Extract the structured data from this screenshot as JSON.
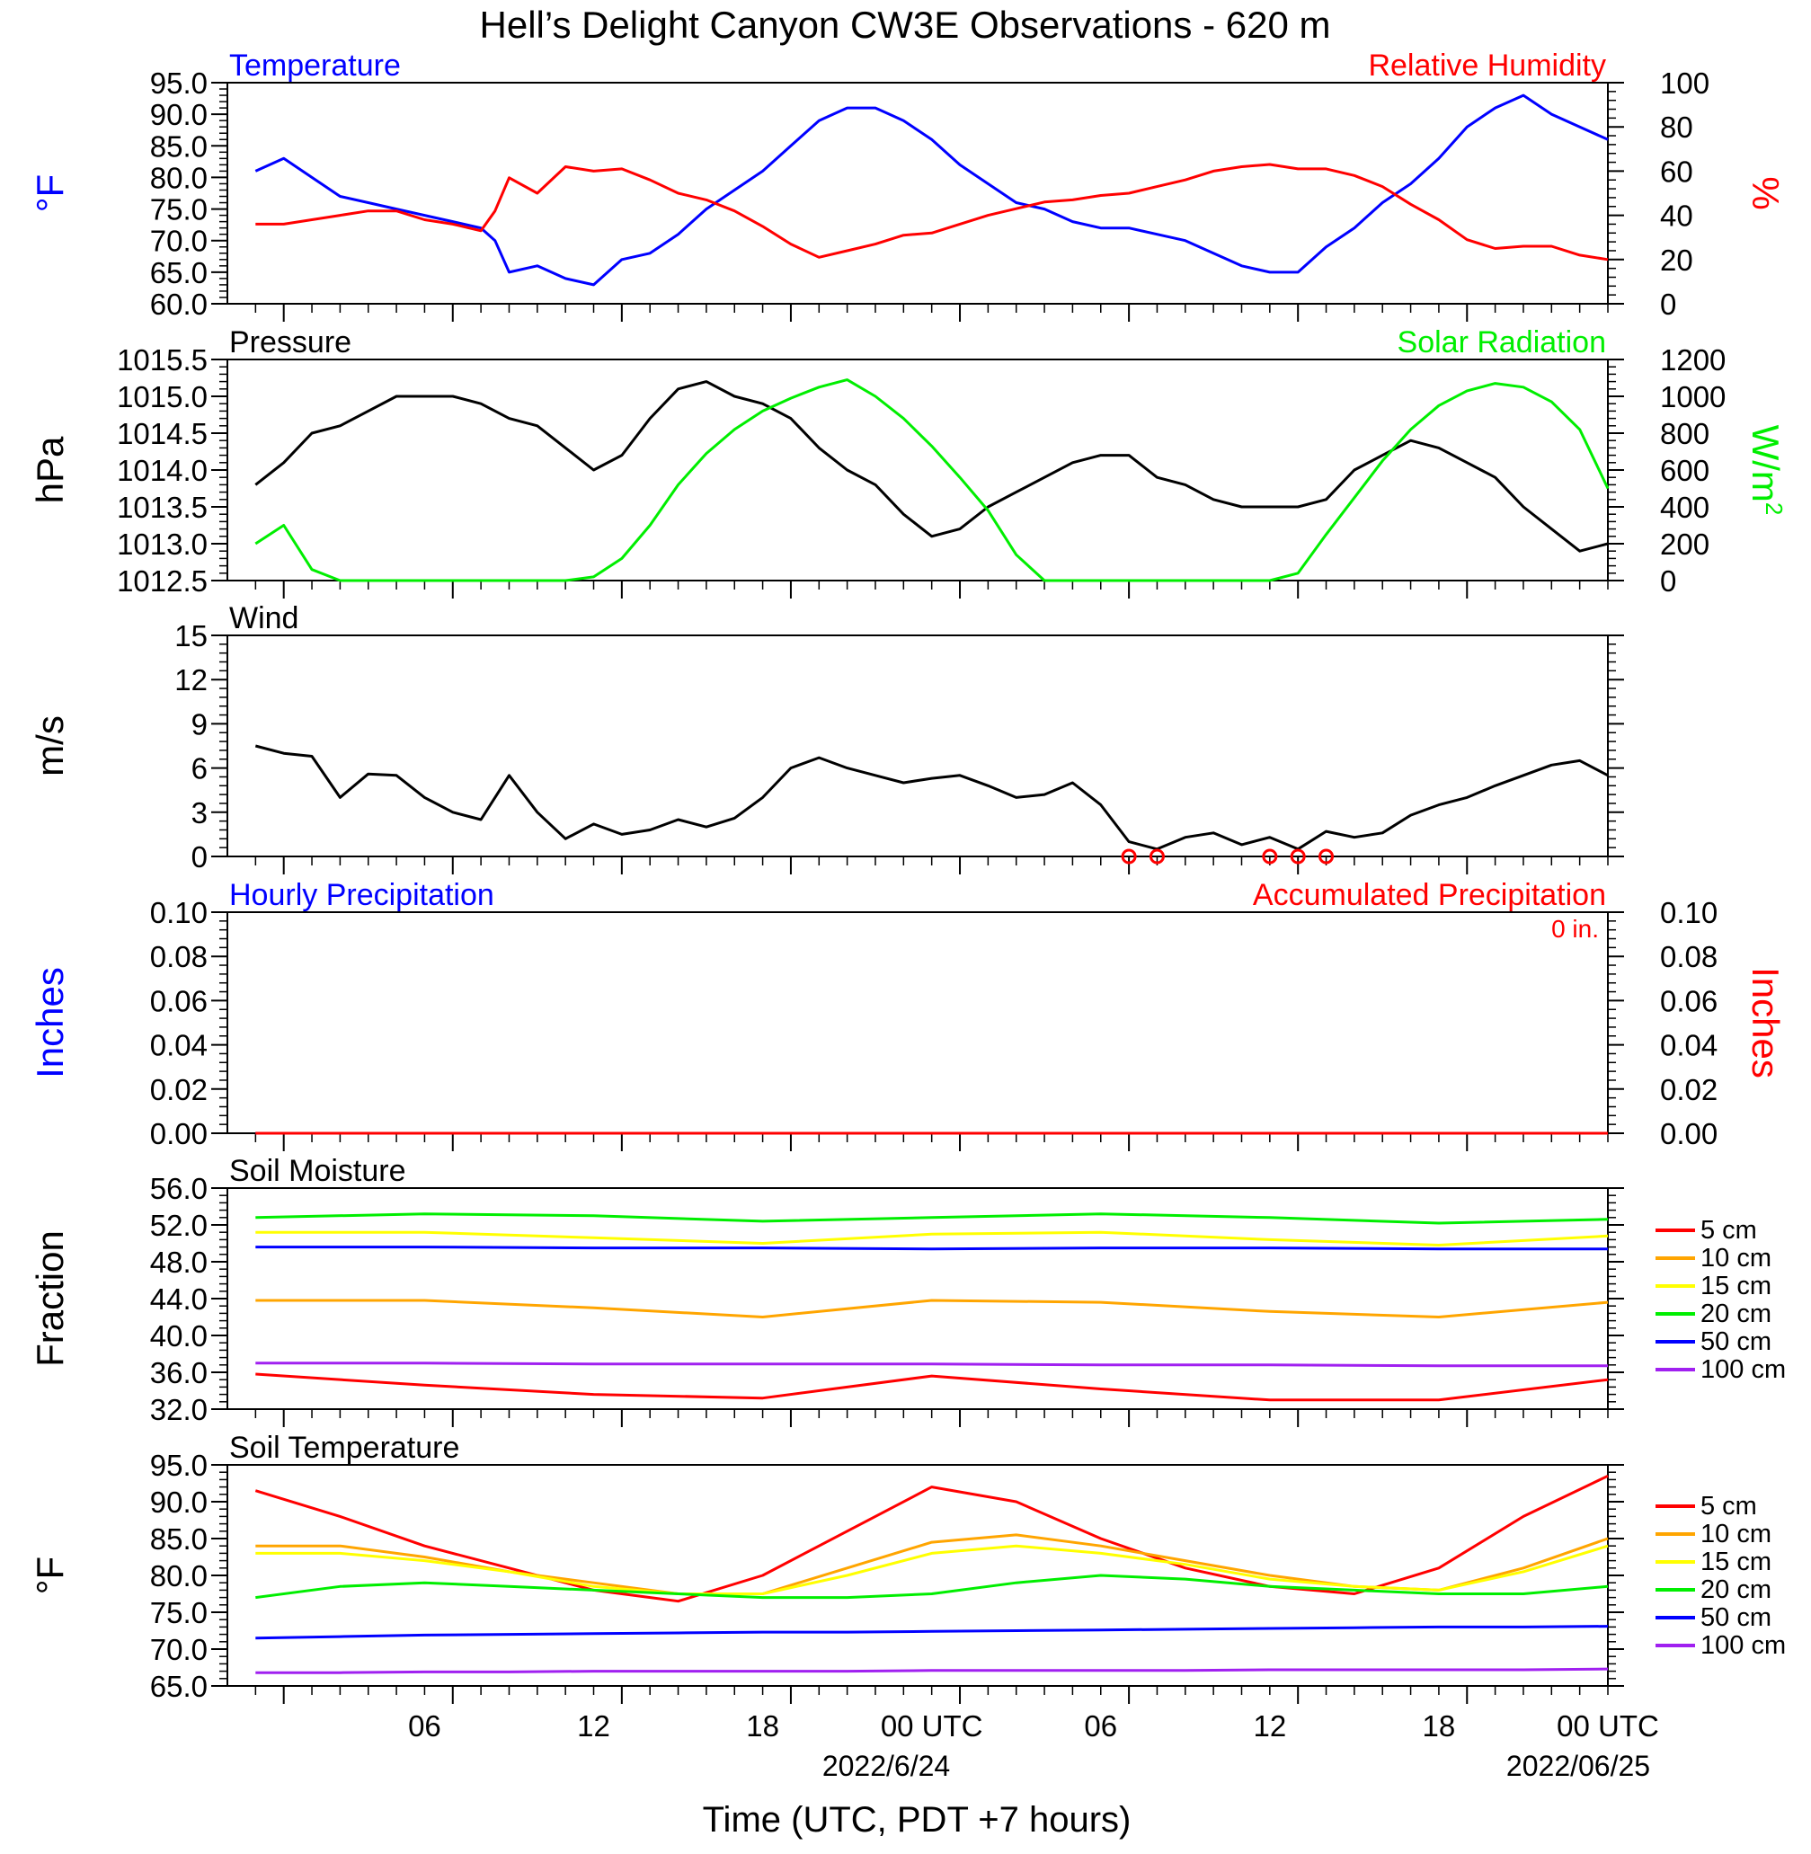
{
  "title": "Hell’s Delight Canyon CW3E Observations - 620 m",
  "xlabel": "Time (UTC, PDT +7 hours)",
  "x_ticks": [
    "06",
    "12",
    "18",
    "00 UTC",
    "06",
    "12",
    "18",
    "00 UTC"
  ],
  "x_dates": [
    "2022/6/24",
    "2022/06/25"
  ],
  "chart_data": [
    {
      "type": "line",
      "panel": "temperature-humidity",
      "left_title": "Temperature",
      "right_title": "Relative Humidity",
      "ylabel_left": "°F",
      "ylabel_right": "%",
      "ylim_left": [
        60,
        95
      ],
      "ylim_right": [
        0,
        100
      ],
      "yticks_left": [
        "95.0",
        "90.0",
        "85.0",
        "80.0",
        "75.0",
        "70.0",
        "65.0",
        "60.0"
      ],
      "yticks_right": [
        "100",
        "80",
        "60",
        "40",
        "20",
        "0"
      ],
      "x_hours": [
        1,
        2,
        3,
        4,
        5,
        6,
        7,
        8,
        9,
        9.5,
        10,
        11,
        12,
        13,
        14,
        15,
        16,
        17,
        18,
        19,
        20,
        21,
        22,
        23,
        24,
        25,
        26,
        27,
        28,
        29,
        30,
        31,
        32,
        33,
        34,
        35,
        36,
        37,
        38,
        39,
        40,
        41,
        42,
        43,
        44,
        45,
        46,
        47,
        48,
        49
      ],
      "series": [
        {
          "name": "Temperature",
          "axis": "left",
          "color": "#0000ff",
          "values": [
            81,
            83,
            80,
            77,
            76,
            75,
            74,
            73,
            72,
            70,
            65,
            66,
            64,
            63,
            67,
            68,
            71,
            75,
            78,
            81,
            85,
            89,
            91,
            91,
            89,
            86,
            82,
            79,
            76,
            75,
            73,
            72,
            72,
            71,
            70,
            68,
            66,
            65,
            65,
            69,
            72,
            76,
            79,
            83,
            88,
            91,
            93,
            90,
            88,
            86
          ]
        },
        {
          "name": "Relative Humidity",
          "axis": "right",
          "color": "#ff0000",
          "values": [
            36,
            36,
            38,
            40,
            42,
            42,
            38,
            36,
            33,
            42,
            57,
            50,
            62,
            60,
            61,
            56,
            50,
            47,
            42,
            35,
            27,
            21,
            24,
            27,
            31,
            32,
            36,
            40,
            43,
            46,
            47,
            49,
            50,
            53,
            56,
            60,
            62,
            63,
            61,
            61,
            58,
            53,
            45,
            38,
            29,
            25,
            26,
            26,
            22,
            20
          ]
        }
      ]
    },
    {
      "type": "line",
      "panel": "pressure-solar",
      "left_title": "Pressure",
      "right_title": "Solar Radiation",
      "ylabel_left": "hPa",
      "ylabel_right": "W/m",
      "ylabel_right_sup": "2",
      "ylim_left": [
        1012.5,
        1015.5
      ],
      "ylim_right": [
        0,
        1200
      ],
      "yticks_left": [
        "1015.5",
        "1015.0",
        "1014.5",
        "1014.0",
        "1013.5",
        "1013.0",
        "1012.5"
      ],
      "yticks_right": [
        "1200",
        "1000",
        "800",
        "600",
        "400",
        "200",
        "0"
      ],
      "x_hours": [
        1,
        2,
        3,
        4,
        5,
        6,
        7,
        8,
        9,
        10,
        11,
        12,
        13,
        14,
        15,
        16,
        17,
        18,
        19,
        20,
        21,
        22,
        23,
        24,
        25,
        26,
        27,
        28,
        29,
        30,
        31,
        32,
        33,
        34,
        35,
        36,
        37,
        38,
        39,
        40,
        41,
        42,
        43,
        44,
        45,
        46,
        47,
        48,
        49
      ],
      "series": [
        {
          "name": "Pressure",
          "axis": "left",
          "color": "#000000",
          "values": [
            1013.8,
            1014.1,
            1014.5,
            1014.6,
            1014.8,
            1015.0,
            1015.0,
            1015.0,
            1014.9,
            1014.7,
            1014.6,
            1014.3,
            1014.0,
            1014.2,
            1014.7,
            1015.1,
            1015.2,
            1015.0,
            1014.9,
            1014.7,
            1014.3,
            1014.0,
            1013.8,
            1013.4,
            1013.1,
            1013.2,
            1013.5,
            1013.7,
            1013.9,
            1014.1,
            1014.2,
            1014.2,
            1013.9,
            1013.8,
            1013.6,
            1013.5,
            1013.5,
            1013.5,
            1013.6,
            1014.0,
            1014.2,
            1014.4,
            1014.3,
            1014.1,
            1013.9,
            1013.5,
            1013.2,
            1012.9,
            1013.0
          ]
        },
        {
          "name": "Solar Radiation",
          "axis": "right",
          "color": "#00ee00",
          "values": [
            200,
            300,
            60,
            0,
            0,
            0,
            0,
            0,
            0,
            0,
            0,
            0,
            20,
            120,
            300,
            520,
            690,
            820,
            920,
            990,
            1050,
            1090,
            1000,
            880,
            730,
            560,
            380,
            140,
            0,
            0,
            0,
            0,
            0,
            0,
            0,
            0,
            0,
            40,
            250,
            450,
            650,
            820,
            950,
            1030,
            1070,
            1050,
            970,
            820,
            500
          ]
        }
      ]
    },
    {
      "type": "line",
      "panel": "wind",
      "left_title": "Wind",
      "ylabel_left": "m/s",
      "ylim_left": [
        0,
        15
      ],
      "yticks_left": [
        "15",
        "12",
        "9",
        "6",
        "3",
        "0"
      ],
      "x_hours": [
        1,
        2,
        3,
        4,
        5,
        6,
        7,
        8,
        9,
        10,
        11,
        12,
        13,
        14,
        15,
        16,
        17,
        18,
        19,
        20,
        21,
        22,
        23,
        24,
        25,
        26,
        27,
        28,
        29,
        30,
        31,
        32,
        33,
        34,
        35,
        36,
        37,
        38,
        39,
        40,
        41,
        42,
        43,
        44,
        45,
        46,
        47,
        48,
        49
      ],
      "series": [
        {
          "name": "Wind speed",
          "color": "#000000",
          "values": [
            7.5,
            7,
            6.8,
            4,
            5.6,
            5.5,
            4,
            3,
            2.5,
            5.5,
            3,
            1.2,
            2.2,
            1.5,
            1.8,
            2.5,
            2,
            2.6,
            4,
            6,
            6.7,
            6,
            5.5,
            5,
            5.3,
            5.5,
            4.8,
            4,
            4.2,
            5,
            3.5,
            1,
            0.5,
            1.3,
            1.6,
            0.8,
            1.3,
            0.5,
            1.7,
            1.3,
            1.6,
            2.8,
            3.5,
            4,
            4.8,
            5.5,
            6.2,
            6.5,
            5.5
          ]
        }
      ],
      "calm_markers_hours": [
        32,
        33,
        37,
        38,
        39
      ]
    },
    {
      "type": "line",
      "panel": "precipitation",
      "left_title": "Hourly Precipitation",
      "right_title": "Accumulated Precipitation",
      "annotation": "0 in.",
      "ylabel_left": "Inches",
      "ylabel_right": "Inches",
      "ylim_left": [
        0,
        0.1
      ],
      "ylim_right": [
        0,
        0.1
      ],
      "yticks_left": [
        "0.10",
        "0.08",
        "0.06",
        "0.04",
        "0.02",
        "0.00"
      ],
      "yticks_right": [
        "0.10",
        "0.08",
        "0.06",
        "0.04",
        "0.02",
        "0.00"
      ],
      "x_hours": [
        1,
        49
      ],
      "series": [
        {
          "name": "Hourly Precipitation",
          "axis": "left",
          "color": "#0000ff",
          "values": [
            0,
            0
          ]
        },
        {
          "name": "Accumulated Precipitation",
          "axis": "right",
          "color": "#ff0000",
          "values": [
            0,
            0
          ]
        }
      ]
    },
    {
      "type": "line",
      "panel": "soil-moisture",
      "left_title": "Soil Moisture",
      "ylabel_left": "Fraction",
      "ylim_left": [
        32,
        56
      ],
      "yticks_left": [
        "56.0",
        "52.0",
        "48.0",
        "44.0",
        "40.0",
        "36.0",
        "32.0"
      ],
      "x_hours": [
        1,
        7,
        13,
        19,
        25,
        31,
        37,
        43,
        49
      ],
      "series": [
        {
          "name": "5 cm",
          "color": "#ff0000",
          "values": [
            35.8,
            34.6,
            33.6,
            33.2,
            35.6,
            34.2,
            33.0,
            33.0,
            35.2
          ]
        },
        {
          "name": "10 cm",
          "color": "#ffa500",
          "values": [
            43.8,
            43.8,
            43.0,
            42.0,
            43.8,
            43.6,
            42.6,
            42.0,
            43.6
          ]
        },
        {
          "name": "15 cm",
          "color": "#ffff00",
          "values": [
            51.2,
            51.2,
            50.6,
            50.0,
            51.0,
            51.2,
            50.4,
            49.8,
            50.8
          ]
        },
        {
          "name": "20 cm",
          "color": "#00ee00",
          "values": [
            52.8,
            53.2,
            53.0,
            52.4,
            52.8,
            53.2,
            52.8,
            52.2,
            52.6
          ]
        },
        {
          "name": "50 cm",
          "color": "#0000ff",
          "values": [
            49.6,
            49.6,
            49.5,
            49.5,
            49.4,
            49.5,
            49.5,
            49.4,
            49.4
          ]
        },
        {
          "name": "100 cm",
          "color": "#a020f0",
          "values": [
            37.0,
            37.0,
            36.9,
            36.9,
            36.9,
            36.8,
            36.8,
            36.7,
            36.7
          ]
        }
      ]
    },
    {
      "type": "line",
      "panel": "soil-temperature",
      "left_title": "Soil Temperature",
      "ylabel_left": "°F",
      "ylim_left": [
        65,
        95
      ],
      "yticks_left": [
        "95.0",
        "90.0",
        "85.0",
        "80.0",
        "75.0",
        "70.0",
        "65.0"
      ],
      "x_hours": [
        1,
        4,
        7,
        10,
        13,
        16,
        19,
        22,
        25,
        28,
        31,
        34,
        37,
        40,
        43,
        46,
        49
      ],
      "series": [
        {
          "name": "5 cm",
          "color": "#ff0000",
          "values": [
            91.5,
            88,
            84,
            81,
            78,
            76.5,
            80,
            86,
            92,
            90,
            85,
            81,
            78.5,
            77.5,
            81,
            88,
            93.5
          ]
        },
        {
          "name": "10 cm",
          "color": "#ffa500",
          "values": [
            84,
            84,
            82.5,
            80.5,
            79,
            77.5,
            77.5,
            81,
            84.5,
            85.5,
            84,
            82,
            80,
            78.5,
            78,
            81,
            85
          ]
        },
        {
          "name": "15 cm",
          "color": "#ffff00",
          "values": [
            83,
            83,
            82,
            80.5,
            78.5,
            77.5,
            77.5,
            80,
            83,
            84,
            83,
            81.5,
            79.5,
            78.5,
            78,
            80.5,
            84
          ]
        },
        {
          "name": "20 cm",
          "color": "#00ee00",
          "values": [
            77,
            78.5,
            79,
            78.5,
            78,
            77.5,
            77,
            77,
            77.5,
            79,
            80,
            79.5,
            78.5,
            78,
            77.5,
            77.5,
            78.5
          ]
        },
        {
          "name": "50 cm",
          "color": "#0000ff",
          "values": [
            71.5,
            71.7,
            71.9,
            72.0,
            72.1,
            72.2,
            72.3,
            72.3,
            72.4,
            72.5,
            72.6,
            72.7,
            72.8,
            72.9,
            73.0,
            73.0,
            73.1
          ]
        },
        {
          "name": "100 cm",
          "color": "#a020f0",
          "values": [
            66.8,
            66.8,
            66.9,
            66.9,
            67.0,
            67.0,
            67.0,
            67.0,
            67.1,
            67.1,
            67.1,
            67.1,
            67.2,
            67.2,
            67.2,
            67.2,
            67.3
          ]
        }
      ]
    }
  ]
}
